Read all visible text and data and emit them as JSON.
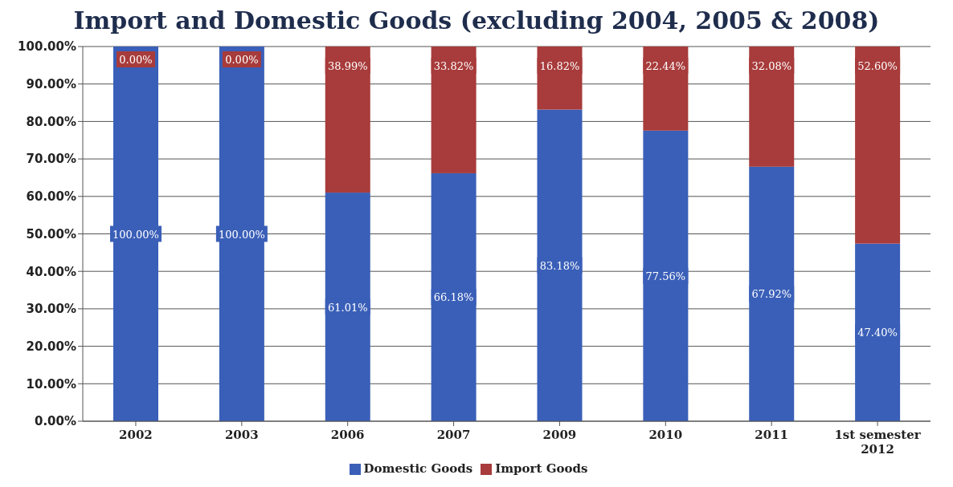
{
  "chart_data": {
    "type": "bar",
    "title": "Import and Domestic Goods (excluding 2004, 2005 & 2008)",
    "categories": [
      "2002",
      "2003",
      "2006",
      "2007",
      "2009",
      "2010",
      "2011",
      "1st semester 2012"
    ],
    "stacked": true,
    "series": [
      {
        "name": "Domestic Goods",
        "color": "#3a5fb8",
        "values": [
          100,
          100,
          61.01,
          66.18,
          83.18,
          77.56,
          67.92,
          47.4
        ],
        "value_labels": [
          "100.00%",
          "100.00%",
          "61.01%",
          "66.18%",
          "83.18%",
          "77.56%",
          "67.92%",
          "47.40%"
        ]
      },
      {
        "name": "Import Goods",
        "color": "#a83b3b",
        "values": [
          0,
          0,
          38.99,
          33.82,
          16.82,
          22.44,
          32.08,
          52.6
        ],
        "value_labels": [
          "0.00%",
          "0.00%",
          "38.99%",
          "33.82%",
          "16.82%",
          "22.44%",
          "32.08%",
          "52.60%"
        ]
      }
    ],
    "ylim": [
      0,
      100
    ],
    "yticks": [
      {
        "value": 0,
        "label": "0.00%"
      },
      {
        "value": 10,
        "label": "10.00%"
      },
      {
        "value": 20,
        "label": "20.00%"
      },
      {
        "value": 30,
        "label": "30.00%"
      },
      {
        "value": 40,
        "label": "40.00%"
      },
      {
        "value": 50,
        "label": "50.00%"
      },
      {
        "value": 60,
        "label": "60.00%"
      },
      {
        "value": 70,
        "label": "70.00%"
      },
      {
        "value": 80,
        "label": "80.00%"
      },
      {
        "value": 90,
        "label": "90.00%"
      },
      {
        "value": 100,
        "label": "100.00%"
      }
    ],
    "grid": "y",
    "legend": "bottom"
  }
}
